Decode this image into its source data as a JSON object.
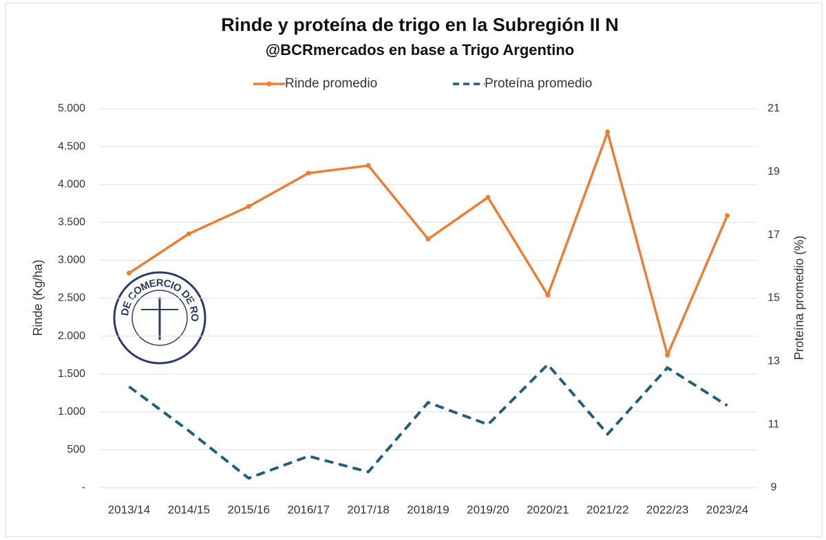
{
  "chart_data": {
    "type": "line",
    "title": "Rinde  y proteína de trigo en la Subregión II N",
    "subtitle": "@BCRmercados en base a Trigo Argentino",
    "y_label": "Rinde (Kg/ha)",
    "y2_label": "Proteína promedio (%)",
    "logo_text": "BOLSA DE COMERCIO DE ROSARIO",
    "categories": [
      "2013/14",
      "2014/15",
      "2015/16",
      "2016/17",
      "2017/18",
      "2018/19",
      "2019/20",
      "2020/21",
      "2021/22",
      "2022/23",
      "2023/24"
    ],
    "series": [
      {
        "name": "Rinde promedio",
        "color": "#ed7d31",
        "values": [
          2830,
          3350,
          3710,
          4150,
          4250,
          3280,
          3830,
          2540,
          4690,
          1750,
          3590
        ]
      },
      {
        "name": "Proteína promedio",
        "color": "#1f5f7a",
        "axis": "y2",
        "dashed": true,
        "values": [
          12.2,
          10.8,
          9.3,
          10.0,
          9.5,
          11.7,
          11.0,
          12.9,
          10.7,
          12.8,
          11.6
        ]
      }
    ],
    "ylim": [
      0,
      5000
    ],
    "yticks": [
      {
        "value": 0,
        "label": "-"
      },
      500,
      {
        "value": 1000,
        "label": "1.000"
      },
      {
        "value": 1500,
        "label": "1.500"
      },
      {
        "value": 2000,
        "label": "2.000"
      },
      {
        "value": 2500,
        "label": "2.500"
      },
      {
        "value": 3000,
        "label": "3.000"
      },
      {
        "value": 3500,
        "label": "3.500"
      },
      {
        "value": 4000,
        "label": "4.000"
      },
      {
        "value": 4500,
        "label": "4.500"
      },
      {
        "value": 5000,
        "label": "5.000"
      }
    ],
    "y2lim": [
      9,
      21
    ],
    "y2ticks": [
      9,
      11,
      13,
      15,
      17,
      19,
      21
    ],
    "grid": true,
    "legend": "top"
  }
}
